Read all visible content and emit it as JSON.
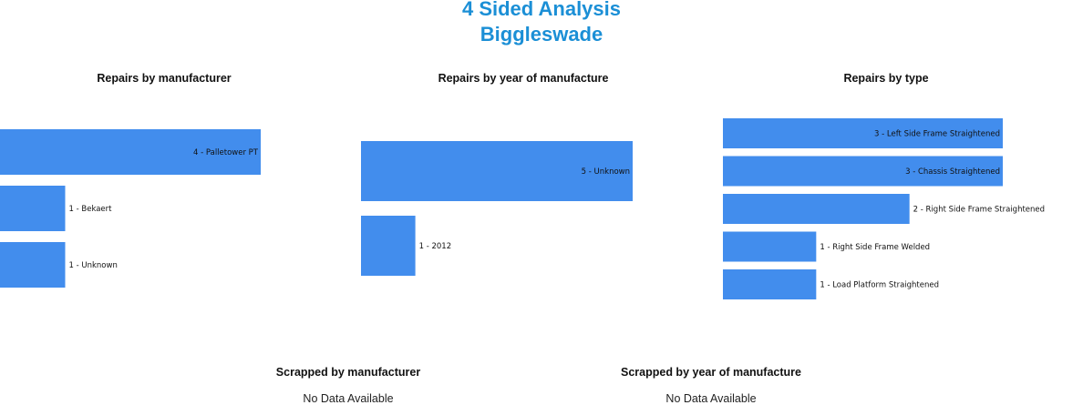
{
  "page": {
    "title_line1": "4 Sided Analysis",
    "title_line2": "Biggleswade",
    "accent_color": "#1b8fd6",
    "bar_color": "#428ded"
  },
  "chart_data": [
    {
      "type": "bar",
      "orientation": "horizontal",
      "title": "Repairs by manufacturer",
      "categories": [
        "Palletower PT",
        "Bekaert",
        "Unknown"
      ],
      "values": [
        4,
        1,
        1
      ],
      "labels": [
        "4 - Palletower PT",
        "1 - Bekaert",
        "1 - Unknown"
      ]
    },
    {
      "type": "bar",
      "orientation": "horizontal",
      "title": "Repairs by year of manufacture",
      "categories": [
        "Unknown",
        "2012"
      ],
      "values": [
        5,
        1
      ],
      "labels": [
        "5 - Unknown",
        "1 - 2012"
      ]
    },
    {
      "type": "bar",
      "orientation": "horizontal",
      "title": "Repairs by type",
      "categories": [
        "Left Side Frame Straightened",
        "Chassis Straightened",
        "Right Side Frame Straightened",
        "Right Side Frame Welded",
        "Load Platform Straightened"
      ],
      "values": [
        3,
        3,
        2,
        1,
        1
      ],
      "labels": [
        "3 - Left Side Frame Straightened",
        "3 - Chassis Straightened",
        "2 - Right Side Frame Straightened",
        "1 - Right Side Frame Welded",
        "1 - Load Platform Straightened"
      ]
    }
  ],
  "empty_charts": [
    {
      "title": "Scrapped by manufacturer",
      "message": "No Data Available"
    },
    {
      "title": "Scrapped by year of manufacture",
      "message": "No Data Available"
    }
  ]
}
